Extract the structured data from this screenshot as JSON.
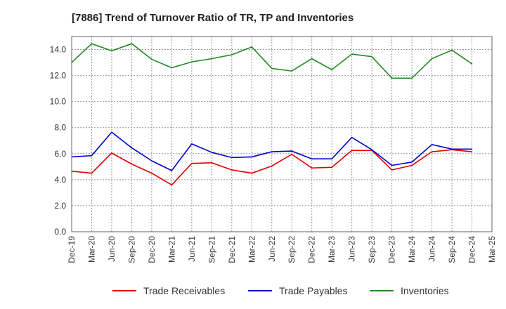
{
  "chart_data": {
    "type": "line",
    "title": "[7886]  Trend of Turnover Ratio of TR, TP and Inventories",
    "xlabel": "",
    "ylabel": "",
    "x": [
      "Dec-19",
      "Mar-20",
      "Jun-20",
      "Sep-20",
      "Dec-20",
      "Mar-21",
      "Jun-21",
      "Sep-21",
      "Dec-21",
      "Mar-22",
      "Jun-22",
      "Sep-22",
      "Dec-22",
      "Mar-23",
      "Jun-23",
      "Sep-23",
      "Dec-23",
      "Mar-24",
      "Jun-24",
      "Sep-24",
      "Dec-24"
    ],
    "x_ticks": [
      "Dec-19",
      "Mar-20",
      "Jun-20",
      "Sep-20",
      "Dec-20",
      "Mar-21",
      "Jun-21",
      "Sep-21",
      "Dec-21",
      "Mar-22",
      "Jun-22",
      "Sep-22",
      "Dec-22",
      "Mar-23",
      "Jun-23",
      "Sep-23",
      "Dec-23",
      "Mar-24",
      "Jun-24",
      "Sep-24",
      "Dec-24",
      "Mar-25"
    ],
    "ylim": [
      0,
      15
    ],
    "y_ticks": [
      "0.0",
      "2.0",
      "4.0",
      "6.0",
      "8.0",
      "10.0",
      "12.0",
      "14.0"
    ],
    "grid": true,
    "legend_position": "bottom",
    "series": [
      {
        "name": "Trade Receivables",
        "color": "#e00000",
        "values": [
          4.65,
          4.5,
          6.05,
          5.2,
          4.5,
          3.6,
          5.25,
          5.3,
          4.75,
          4.5,
          5.05,
          5.95,
          4.9,
          4.95,
          6.25,
          6.25,
          4.75,
          5.1,
          6.15,
          6.3,
          6.15
        ]
      },
      {
        "name": "Trade Payables",
        "color": "#0000cc",
        "values": [
          5.75,
          5.85,
          7.65,
          6.45,
          5.45,
          4.7,
          6.75,
          6.1,
          5.7,
          5.75,
          6.15,
          6.2,
          5.6,
          5.6,
          7.25,
          6.3,
          5.1,
          5.35,
          6.7,
          6.35,
          6.35
        ]
      },
      {
        "name": "Inventories",
        "color": "#228b22",
        "values": [
          13.0,
          14.45,
          13.9,
          14.45,
          13.25,
          12.6,
          13.05,
          13.3,
          13.6,
          14.2,
          12.55,
          12.35,
          13.3,
          12.45,
          13.65,
          13.45,
          11.8,
          11.8,
          13.3,
          13.95,
          12.9
        ]
      }
    ]
  }
}
